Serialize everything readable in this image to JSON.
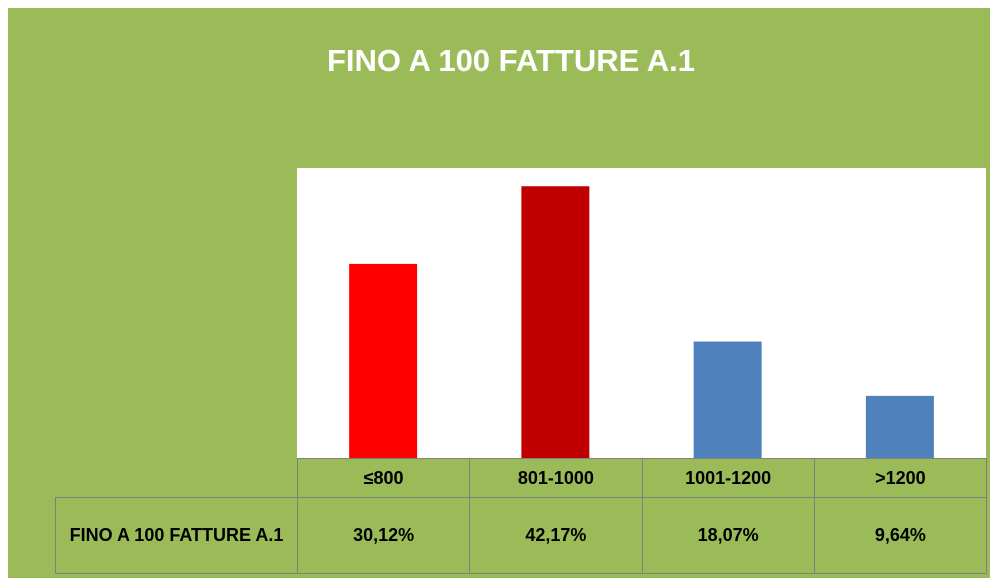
{
  "chart_data": {
    "type": "bar",
    "title": "FINO A 100 FATTURE A.1",
    "series_name": "FINO A 100 FATTURE A.1",
    "categories": [
      "≤800",
      "801-1000",
      "1001-1200",
      ">1200"
    ],
    "values": [
      30.12,
      42.17,
      18.07,
      9.64
    ],
    "value_labels": [
      "30,12%",
      "42,17%",
      "18,07%",
      "9,64%"
    ],
    "colors": [
      "#ff0000",
      "#c00000",
      "#4f81bd",
      "#4f81bd"
    ],
    "ylim": [
      0,
      45
    ],
    "background": "#9bbb59"
  }
}
